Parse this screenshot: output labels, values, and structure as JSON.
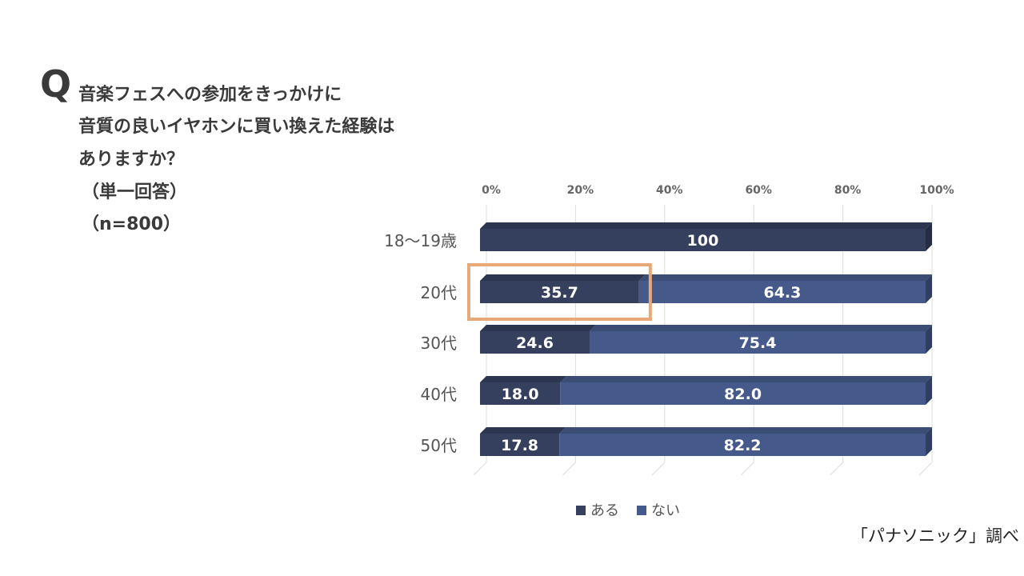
{
  "question": {
    "mark": "Q",
    "lines": [
      "音楽フェスへの参加をきっかけに",
      "音質の良いイヤホンに買い換えた経験は",
      "ありますか？",
      "（単一回答）",
      "（n=800）"
    ]
  },
  "source": "「パナソニック」調べ",
  "chart_data": {
    "type": "bar",
    "orientation": "horizontal",
    "stacked": true,
    "categories": [
      "18～19歳",
      "20代",
      "30代",
      "40代",
      "50代"
    ],
    "series": [
      {
        "name": "ある",
        "values": [
          100,
          35.7,
          24.6,
          18.0,
          17.8
        ],
        "labels": [
          "100",
          "35.7",
          "24.6",
          "18.0",
          "17.8"
        ]
      },
      {
        "name": "ない",
        "values": [
          null,
          64.3,
          75.4,
          82.0,
          82.2
        ],
        "labels": [
          "",
          "64.3",
          "75.4",
          "82.0",
          "82.2"
        ]
      }
    ],
    "x_ticks": [
      "0%",
      "20%",
      "40%",
      "60%",
      "80%",
      "100%"
    ],
    "xlim": [
      0,
      100
    ],
    "grid": true,
    "legend": "bottom",
    "highlight": {
      "category": "20代",
      "series": "ある",
      "color": "#e8a878"
    },
    "colors": {
      "ある": "#34405e",
      "ない": "#45598a"
    }
  }
}
